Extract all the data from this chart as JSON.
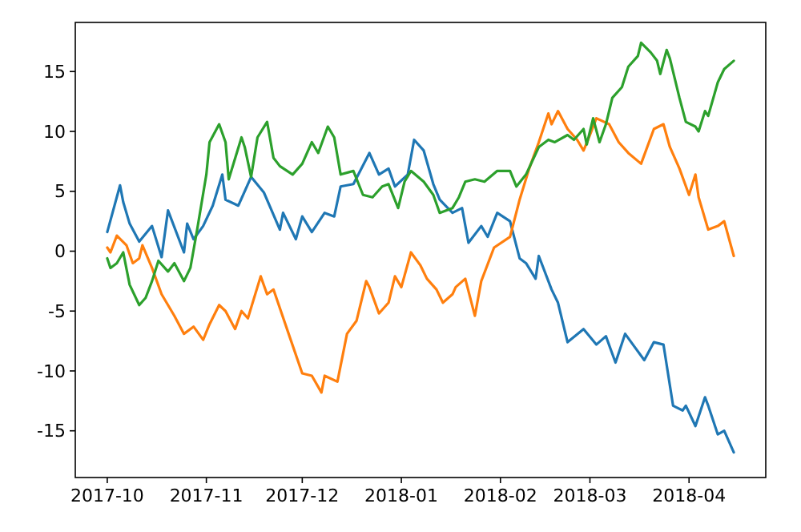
{
  "chart_data": {
    "type": "line",
    "xlim": [
      "2017-09-21",
      "2018-04-25"
    ],
    "ylim": [
      -18.9,
      19.1
    ],
    "xticks": [
      "2017-10",
      "2017-11",
      "2017-12",
      "2018-01",
      "2018-02",
      "2018-03",
      "2018-04"
    ],
    "yticks": [
      -15,
      -10,
      -5,
      0,
      5,
      10,
      15
    ],
    "series": [
      {
        "color": "#1f77b4",
        "x": [
          "2017-10-01",
          "2017-10-05",
          "2017-10-06",
          "2017-10-08",
          "2017-10-11",
          "2017-10-15",
          "2017-10-18",
          "2017-10-20",
          "2017-10-25",
          "2017-10-26",
          "2017-10-28",
          "2017-10-31",
          "2017-11-03",
          "2017-11-06",
          "2017-11-07",
          "2017-11-11",
          "2017-11-15",
          "2017-11-19",
          "2017-11-24",
          "2017-11-25",
          "2017-11-29",
          "2017-12-01",
          "2017-12-04",
          "2017-12-08",
          "2017-12-11",
          "2017-12-13",
          "2017-12-17",
          "2017-12-22",
          "2017-12-25",
          "2017-12-28",
          "2017-12-30",
          "2018-01-03",
          "2018-01-05",
          "2018-01-08",
          "2018-01-11",
          "2018-01-13",
          "2018-01-17",
          "2018-01-20",
          "2018-01-22",
          "2018-01-26",
          "2018-01-28",
          "2018-01-31",
          "2018-02-04",
          "2018-02-07",
          "2018-02-09",
          "2018-02-12",
          "2018-02-13",
          "2018-02-17",
          "2018-02-19",
          "2018-02-22",
          "2018-02-27",
          "2018-03-03",
          "2018-03-06",
          "2018-03-09",
          "2018-03-12",
          "2018-03-15",
          "2018-03-18",
          "2018-03-21",
          "2018-03-24",
          "2018-03-27",
          "2018-03-30",
          "2018-03-31",
          "2018-04-03",
          "2018-04-06",
          "2018-04-07",
          "2018-04-10",
          "2018-04-12",
          "2018-04-15"
        ],
        "values": [
          1.6,
          5.5,
          4.1,
          2.3,
          0.8,
          2.1,
          -0.5,
          3.4,
          -0.1,
          2.3,
          1.0,
          2.1,
          3.8,
          6.4,
          4.3,
          3.8,
          6.2,
          4.9,
          1.8,
          3.2,
          1.0,
          2.9,
          1.6,
          3.2,
          2.9,
          5.4,
          5.6,
          8.2,
          6.4,
          6.9,
          5.4,
          6.4,
          9.3,
          8.4,
          5.6,
          4.3,
          3.2,
          3.6,
          0.7,
          2.1,
          1.2,
          3.2,
          2.5,
          -0.6,
          -1.0,
          -2.3,
          -0.4,
          -3.2,
          -4.3,
          -7.6,
          -6.5,
          -7.8,
          -7.1,
          -9.3,
          -6.9,
          -8.0,
          -9.1,
          -7.6,
          -7.8,
          -12.9,
          -13.3,
          -12.9,
          -14.6,
          -12.2,
          -12.9,
          -15.3,
          -15.0,
          -16.8
        ]
      },
      {
        "color": "#ff7f0e",
        "x": [
          "2017-10-01",
          "2017-10-02",
          "2017-10-04",
          "2017-10-07",
          "2017-10-09",
          "2017-10-11",
          "2017-10-12",
          "2017-10-15",
          "2017-10-18",
          "2017-10-22",
          "2017-10-25",
          "2017-10-28",
          "2017-10-31",
          "2017-11-02",
          "2017-11-05",
          "2017-11-07",
          "2017-11-10",
          "2017-11-12",
          "2017-11-14",
          "2017-11-18",
          "2017-11-20",
          "2017-11-22",
          "2017-11-27",
          "2017-12-01",
          "2017-12-04",
          "2017-12-07",
          "2017-12-08",
          "2017-12-12",
          "2017-12-15",
          "2017-12-18",
          "2017-12-21",
          "2017-12-22",
          "2017-12-25",
          "2017-12-28",
          "2017-12-30",
          "2018-01-01",
          "2018-01-04",
          "2018-01-07",
          "2018-01-09",
          "2018-01-12",
          "2018-01-14",
          "2018-01-17",
          "2018-01-18",
          "2018-01-21",
          "2018-01-24",
          "2018-01-26",
          "2018-01-30",
          "2018-02-04",
          "2018-02-07",
          "2018-02-10",
          "2018-02-13",
          "2018-02-16",
          "2018-02-17",
          "2018-02-19",
          "2018-02-22",
          "2018-02-25",
          "2018-02-27",
          "2018-03-01",
          "2018-03-03",
          "2018-03-07",
          "2018-03-10",
          "2018-03-13",
          "2018-03-17",
          "2018-03-21",
          "2018-03-24",
          "2018-03-26",
          "2018-03-29",
          "2018-04-01",
          "2018-04-03",
          "2018-04-04",
          "2018-04-07",
          "2018-04-10",
          "2018-04-12",
          "2018-04-15"
        ],
        "values": [
          0.3,
          -0.1,
          1.3,
          0.5,
          -1.0,
          -0.6,
          0.5,
          -1.4,
          -3.6,
          -5.4,
          -6.9,
          -6.3,
          -7.4,
          -6.1,
          -4.5,
          -5.0,
          -6.5,
          -5.0,
          -5.6,
          -2.1,
          -3.6,
          -3.2,
          -7.1,
          -10.2,
          -10.4,
          -11.8,
          -10.4,
          -10.9,
          -6.9,
          -5.8,
          -2.5,
          -3.0,
          -5.2,
          -4.3,
          -2.1,
          -3.0,
          -0.1,
          -1.2,
          -2.3,
          -3.2,
          -4.3,
          -3.6,
          -3.0,
          -2.3,
          -5.4,
          -2.5,
          0.3,
          1.2,
          4.3,
          6.9,
          9.1,
          11.5,
          10.6,
          11.7,
          10.2,
          9.3,
          8.4,
          9.7,
          11.1,
          10.6,
          9.1,
          8.2,
          7.3,
          10.2,
          10.6,
          8.7,
          6.9,
          4.7,
          6.4,
          4.5,
          1.8,
          2.1,
          2.5,
          -0.4
        ]
      },
      {
        "color": "#2ca02c",
        "x": [
          "2017-10-01",
          "2017-10-02",
          "2017-10-04",
          "2017-10-06",
          "2017-10-08",
          "2017-10-11",
          "2017-10-13",
          "2017-10-15",
          "2017-10-17",
          "2017-10-20",
          "2017-10-22",
          "2017-10-25",
          "2017-10-27",
          "2017-10-29",
          "2017-11-01",
          "2017-11-02",
          "2017-11-05",
          "2017-11-07",
          "2017-11-08",
          "2017-11-12",
          "2017-11-13",
          "2017-11-15",
          "2017-11-17",
          "2017-11-20",
          "2017-11-22",
          "2017-11-24",
          "2017-11-28",
          "2017-12-01",
          "2017-12-04",
          "2017-12-06",
          "2017-12-09",
          "2017-12-11",
          "2017-12-13",
          "2017-12-17",
          "2017-12-20",
          "2017-12-23",
          "2017-12-26",
          "2017-12-28",
          "2017-12-31",
          "2018-01-02",
          "2018-01-04",
          "2018-01-08",
          "2018-01-11",
          "2018-01-13",
          "2018-01-17",
          "2018-01-19",
          "2018-01-21",
          "2018-01-24",
          "2018-01-27",
          "2018-01-31",
          "2018-02-04",
          "2018-02-06",
          "2018-02-09",
          "2018-02-13",
          "2018-02-16",
          "2018-02-18",
          "2018-02-22",
          "2018-02-24",
          "2018-02-27",
          "2018-02-28",
          "2018-03-02",
          "2018-03-04",
          "2018-03-06",
          "2018-03-08",
          "2018-03-11",
          "2018-03-13",
          "2018-03-16",
          "2018-03-17",
          "2018-03-20",
          "2018-03-22",
          "2018-03-23",
          "2018-03-25",
          "2018-03-26",
          "2018-03-29",
          "2018-03-31",
          "2018-04-03",
          "2018-04-04",
          "2018-04-06",
          "2018-04-07",
          "2018-04-10",
          "2018-04-12",
          "2018-04-15"
        ],
        "values": [
          -0.6,
          -1.4,
          -1.0,
          -0.1,
          -2.8,
          -4.5,
          -3.9,
          -2.5,
          -0.8,
          -1.7,
          -1.0,
          -2.5,
          -1.4,
          1.6,
          6.4,
          9.1,
          10.6,
          9.1,
          6.0,
          9.5,
          8.7,
          6.2,
          9.5,
          10.8,
          7.8,
          7.1,
          6.4,
          7.3,
          9.1,
          8.2,
          10.4,
          9.5,
          6.4,
          6.7,
          4.7,
          4.5,
          5.4,
          5.6,
          3.6,
          5.8,
          6.7,
          5.8,
          4.7,
          3.2,
          3.6,
          4.5,
          5.8,
          6.0,
          5.8,
          6.7,
          6.7,
          5.4,
          6.4,
          8.7,
          9.3,
          9.1,
          9.7,
          9.3,
          10.2,
          8.9,
          11.1,
          9.1,
          10.6,
          12.8,
          13.7,
          15.4,
          16.3,
          17.4,
          16.6,
          15.9,
          14.8,
          16.8,
          16.1,
          12.8,
          10.8,
          10.4,
          10.0,
          11.7,
          11.3,
          14.1,
          15.2,
          15.9
        ]
      }
    ]
  }
}
